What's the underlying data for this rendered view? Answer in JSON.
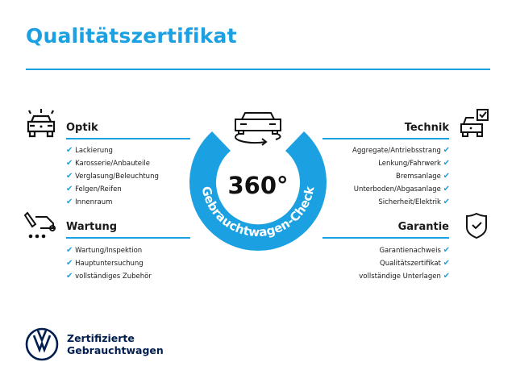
{
  "title": "Qualitätszertifikat",
  "accent_color": "#1ba1e2",
  "badge": {
    "big_text": "360°",
    "arc_text": "Gebrauchtwagen-Check",
    "icon": "car-rotate-icon"
  },
  "sections": {
    "optik": {
      "title": "Optik",
      "icon": "car-lights-icon",
      "items": [
        "Lackierung",
        "Karosserie/Anbauteile",
        "Verglasung/Beleuchtung",
        "Felgen/Reifen",
        "Innenraum"
      ]
    },
    "wartung": {
      "title": "Wartung",
      "icon": "service-truck-icon",
      "items": [
        "Wartung/Inspektion",
        "Hauptuntersuchung",
        "vollständiges Zubehör"
      ]
    },
    "technik": {
      "title": "Technik",
      "icon": "car-checkbox-icon",
      "items": [
        "Aggregate/Antriebsstrang",
        "Lenkung/Fahrwerk",
        "Bremsanlage",
        "Unterboden/Abgasanlage",
        "Sicherheit/Elektrik"
      ]
    },
    "garantie": {
      "title": "Garantie",
      "icon": "shield-check-icon",
      "items": [
        "Garantienachweis",
        "Qualitätszertifikat",
        "vollständige Unterlagen"
      ]
    }
  },
  "brand": {
    "line1": "Zertifizierte",
    "line2": "Gebrauchtwagen",
    "logo": "vw-logo"
  },
  "check_mark": "✔"
}
